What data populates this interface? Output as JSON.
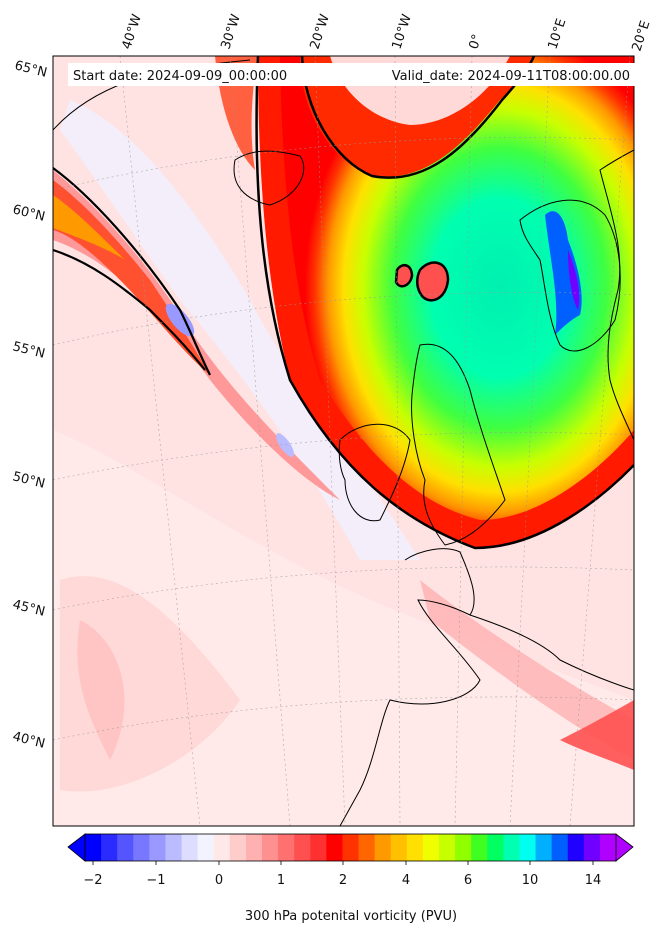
{
  "header": {
    "start_date": "Start date: 2024-09-09_00:00:00",
    "valid_date": "Valid_date: 2024-09-11T08:00:00.00"
  },
  "longitude_labels": [
    "40°W",
    "30°W",
    "20°W",
    "10°W",
    "0°",
    "10°E",
    "20°E"
  ],
  "latitude_labels": [
    "65°N",
    "60°N",
    "55°N",
    "50°N",
    "45°N",
    "40°N"
  ],
  "colorbar": {
    "title": "300 hPa potenital vorticity (PVU)",
    "tick_labels": [
      "−2",
      "−1",
      "0",
      "1",
      "2",
      "4",
      "6",
      "10",
      "14"
    ],
    "levels": [
      "#0000ff",
      "#2b2bff",
      "#5555ff",
      "#7777ff",
      "#9999ff",
      "#bbbbff",
      "#ddddff",
      "#f3f3ff",
      "#ffe8e8",
      "#ffcccc",
      "#ffb0b0",
      "#ff9090",
      "#ff7070",
      "#ff5050",
      "#ff3030",
      "#ff0000",
      "#ff3300",
      "#ff6600",
      "#ff9900",
      "#ffc000",
      "#ffe000",
      "#f0ff00",
      "#c8ff00",
      "#90ff00",
      "#40ff20",
      "#00ff60",
      "#00ffb0",
      "#00fff0",
      "#00b0ff",
      "#0060ff",
      "#2000ff",
      "#7000ff",
      "#b000ff"
    ]
  }
}
